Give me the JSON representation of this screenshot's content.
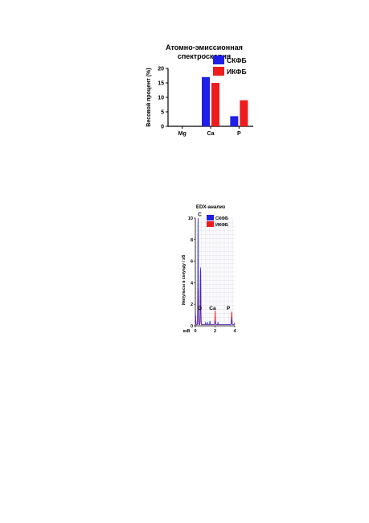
{
  "chart_data": [
    {
      "type": "bar",
      "title_lines": [
        "Атомно-эмиссионная",
        "спектроскопия"
      ],
      "xlabel": "",
      "ylabel": "Весовой процент (%)",
      "categories": [
        "Mg",
        "Ca",
        "P"
      ],
      "ylim": [
        0,
        20
      ],
      "yticks": [
        0,
        5,
        10,
        15,
        20
      ],
      "series": [
        {
          "name": "СКФБ",
          "color": "#1f1fe6",
          "values": [
            0,
            17,
            3.5
          ]
        },
        {
          "name": "ИКФБ",
          "color": "#ee1c1c",
          "values": [
            0,
            15,
            9
          ]
        }
      ],
      "legend_position": "top-right",
      "grid": false
    },
    {
      "type": "line",
      "title": "EDX-анализ",
      "xlabel": "кэВ",
      "ylabel": "Импульсы в секунду / эВ",
      "xlim": [
        0,
        4
      ],
      "ylim": [
        0,
        10
      ],
      "xticks": [
        0,
        2,
        4
      ],
      "yticks": [
        0,
        2,
        4,
        6,
        8,
        10
      ],
      "grid": true,
      "legend_position": "top-right",
      "series": [
        {
          "name": "СКФБ",
          "color": "#1f1fe6",
          "peaks": [
            [
              0.02,
              0.9
            ],
            [
              0.28,
              10
            ],
            [
              0.53,
              5.3
            ],
            [
              1.04,
              0.2
            ],
            [
              1.25,
              0.2
            ],
            [
              1.48,
              0.3
            ],
            [
              2.01,
              0.3
            ],
            [
              2.3,
              0.2
            ],
            [
              3.69,
              0.6
            ],
            [
              4.01,
              0.2
            ]
          ]
        },
        {
          "name": "ИКФБ",
          "color": "#ee1c1c",
          "peaks": [
            [
              0.02,
              0.6
            ],
            [
              0.28,
              3.3
            ],
            [
              0.53,
              5.1
            ],
            [
              2.01,
              1.3
            ],
            [
              3.69,
              1.2
            ]
          ]
        }
      ],
      "annotations": [
        {
          "text": "C",
          "x": 0.45,
          "y": 10.2
        },
        {
          "text": "O",
          "x": 0.45,
          "y": 1.5
        },
        {
          "text": "Ca",
          "x": 1.75,
          "y": 1.5
        },
        {
          "text": "P",
          "x": 3.35,
          "y": 1.5
        }
      ]
    }
  ]
}
